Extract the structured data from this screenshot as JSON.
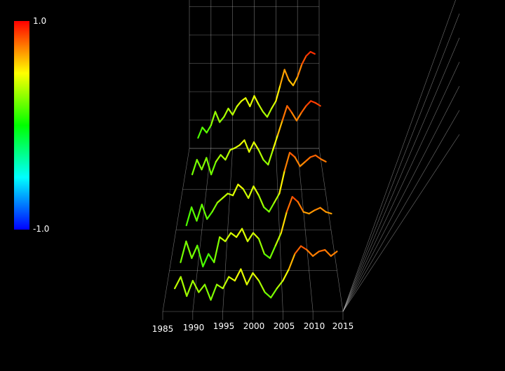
{
  "chart_data": {
    "type": "line",
    "render": "3d-surface-lines",
    "title": "",
    "xlabel": "",
    "ylabel": "",
    "x_ticks": [
      "1985",
      "1990",
      "1995",
      "2000",
      "2005",
      "2010",
      "2015"
    ],
    "xlim": [
      1985,
      2015
    ],
    "colorbar": {
      "max_label": "1.0",
      "min_label": "-1.0",
      "range": [
        -1.0,
        1.0
      ],
      "colormap": [
        "#0000ff",
        "#00ffff",
        "#00ff00",
        "#ffff00",
        "#ff0000"
      ]
    },
    "grid": true,
    "background": "#000000",
    "series": [
      {
        "x": [
          1987,
          1988,
          1989,
          1990,
          1991,
          1992,
          1993,
          1994,
          1995,
          1996,
          1997,
          1998,
          1999,
          2000,
          2001,
          2002,
          2003,
          2004,
          2005,
          2006,
          2007,
          2008,
          2009,
          2010,
          2011,
          2012,
          2013,
          2014
        ],
        "values": [
          0.1,
          0.2,
          0.15,
          0.22,
          0.35,
          0.25,
          0.3,
          0.38,
          0.32,
          0.4,
          0.45,
          0.48,
          0.4,
          0.5,
          0.42,
          0.35,
          0.3,
          0.38,
          0.45,
          0.6,
          0.75,
          0.65,
          0.6,
          0.68,
          0.8,
          0.88,
          0.92,
          0.9
        ]
      },
      {
        "x": [
          1987,
          1988,
          1989,
          1990,
          1991,
          1992,
          1993,
          1994,
          1995,
          1996,
          1997,
          1998,
          1999,
          2000,
          2001,
          2002,
          2003,
          2004,
          2005,
          2006,
          2007,
          2008,
          2009,
          2010,
          2011,
          2012,
          2013,
          2014
        ],
        "values": [
          0.15,
          0.3,
          0.2,
          0.32,
          0.15,
          0.28,
          0.35,
          0.3,
          0.4,
          0.42,
          0.45,
          0.5,
          0.38,
          0.48,
          0.4,
          0.3,
          0.25,
          0.4,
          0.55,
          0.7,
          0.85,
          0.78,
          0.7,
          0.78,
          0.85,
          0.9,
          0.88,
          0.85
        ]
      },
      {
        "x": [
          1987,
          1988,
          1989,
          1990,
          1991,
          1992,
          1993,
          1994,
          1995,
          1996,
          1997,
          1998,
          1999,
          2000,
          2001,
          2002,
          2003,
          2004,
          2005,
          2006,
          2007,
          2008,
          2009,
          2010,
          2011,
          2012,
          2013,
          2014
        ],
        "values": [
          0.05,
          0.25,
          0.1,
          0.28,
          0.12,
          0.2,
          0.3,
          0.35,
          0.4,
          0.38,
          0.5,
          0.45,
          0.35,
          0.48,
          0.38,
          0.25,
          0.2,
          0.3,
          0.4,
          0.65,
          0.85,
          0.8,
          0.7,
          0.75,
          0.8,
          0.82,
          0.78,
          0.75
        ]
      },
      {
        "x": [
          1987,
          1988,
          1989,
          1990,
          1991,
          1992,
          1993,
          1994,
          1995,
          1996,
          1997,
          1998,
          1999,
          2000,
          2001,
          2002,
          2003,
          2004,
          2005,
          2006,
          2007,
          2008,
          2009,
          2010,
          2011,
          2012,
          2013,
          2014
        ],
        "values": [
          0.1,
          0.35,
          0.15,
          0.3,
          0.05,
          0.2,
          0.1,
          0.4,
          0.35,
          0.45,
          0.4,
          0.5,
          0.35,
          0.45,
          0.38,
          0.2,
          0.15,
          0.3,
          0.45,
          0.7,
          0.88,
          0.82,
          0.7,
          0.68,
          0.72,
          0.75,
          0.7,
          0.68
        ]
      },
      {
        "x": [
          1987,
          1988,
          1989,
          1990,
          1991,
          1992,
          1993,
          1994,
          1995,
          1996,
          1997,
          1998,
          1999,
          2000,
          2001,
          2002,
          2003,
          2004,
          2005,
          2006,
          2007,
          2008,
          2009,
          2010,
          2011,
          2012,
          2013,
          2014
        ],
        "values": [
          0.3,
          0.45,
          0.2,
          0.4,
          0.25,
          0.35,
          0.15,
          0.35,
          0.3,
          0.45,
          0.4,
          0.55,
          0.35,
          0.5,
          0.4,
          0.25,
          0.18,
          0.3,
          0.4,
          0.55,
          0.75,
          0.85,
          0.8,
          0.72,
          0.78,
          0.8,
          0.72,
          0.78
        ]
      }
    ]
  }
}
